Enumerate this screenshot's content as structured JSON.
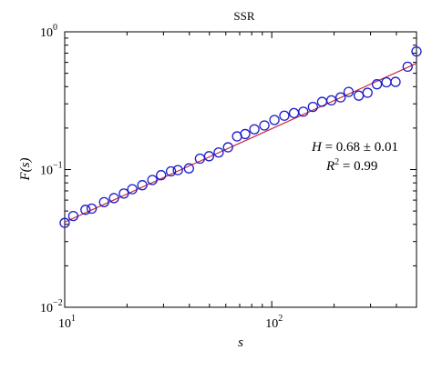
{
  "chart_data": {
    "type": "scatter",
    "title": "SSR",
    "xlabel": "s",
    "ylabel": "F(s)",
    "x_scale": "log",
    "y_scale": "log",
    "xlim": [
      10,
      500
    ],
    "ylim": [
      0.01,
      1
    ],
    "x_ticks": [
      {
        "value": 10,
        "base": "10",
        "exp": "1"
      },
      {
        "value": 100,
        "base": "10",
        "exp": "2"
      }
    ],
    "y_ticks": [
      {
        "value": 0.01,
        "base": "10",
        "exp": "−2"
      },
      {
        "value": 0.1,
        "base": "10",
        "exp": "−1"
      },
      {
        "value": 1,
        "base": "10",
        "exp": "0"
      }
    ],
    "grid": false,
    "legend": null,
    "series": [
      {
        "type": "scatter",
        "marker": "circle",
        "color": "#1c1cc8",
        "x": [
          10,
          11,
          12.6,
          13.5,
          15.5,
          17.3,
          19.3,
          21.2,
          23.7,
          26.5,
          29.2,
          32.6,
          35.2,
          39.8,
          45,
          49.8,
          55.4,
          61.5,
          68,
          74.4,
          82.4,
          92.1,
          103,
          115,
          128,
          142,
          158,
          175,
          194,
          215,
          235,
          263,
          290,
          322,
          358,
          396,
          453,
          500
        ],
        "y": [
          0.041,
          0.046,
          0.051,
          0.052,
          0.058,
          0.062,
          0.067,
          0.072,
          0.077,
          0.084,
          0.091,
          0.097,
          0.099,
          0.102,
          0.12,
          0.125,
          0.133,
          0.145,
          0.174,
          0.181,
          0.196,
          0.209,
          0.229,
          0.246,
          0.257,
          0.263,
          0.285,
          0.31,
          0.318,
          0.334,
          0.366,
          0.344,
          0.361,
          0.416,
          0.43,
          0.433,
          0.558,
          0.72
        ]
      },
      {
        "type": "line",
        "name": "fit",
        "color": "#c8283c",
        "x": [
          10,
          500
        ],
        "y": [
          0.0415,
          0.59
        ]
      }
    ],
    "annotations": {
      "h_label": "H",
      "h_value": " = 0.68 ± 0.01",
      "r2_label": "R",
      "r2_exp": "2",
      "r2_value": " = 0.99"
    }
  }
}
